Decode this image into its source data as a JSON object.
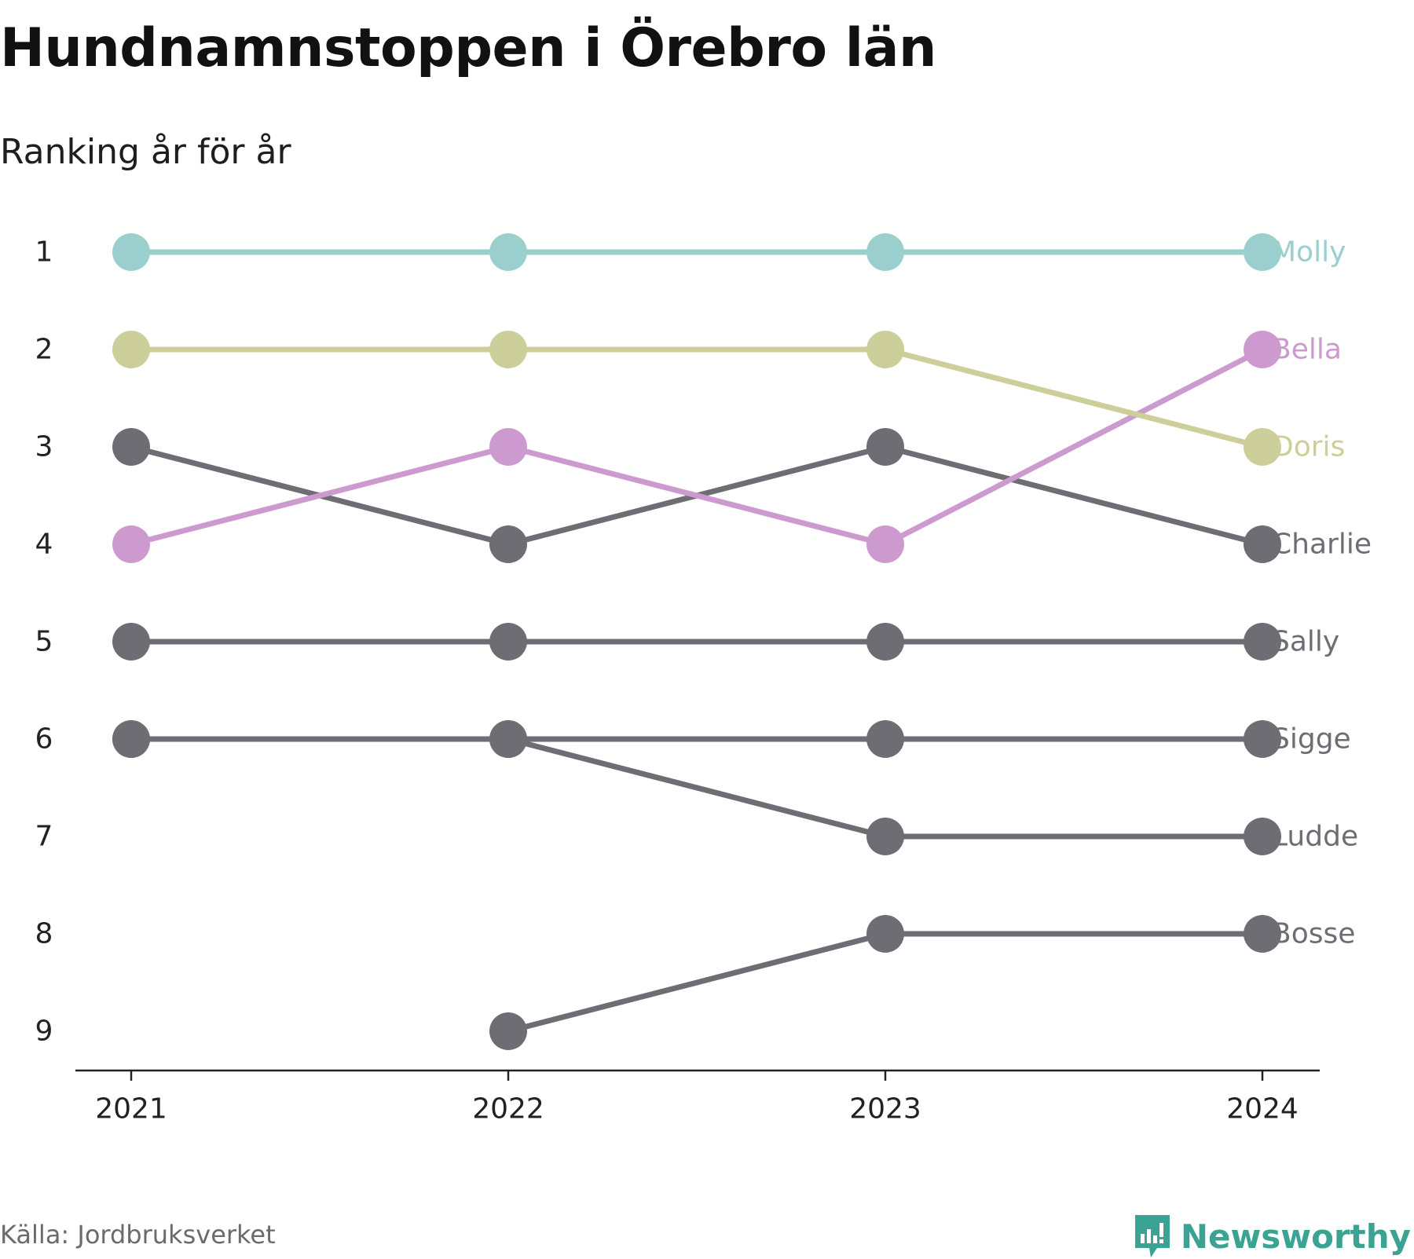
{
  "title": "Hundnamnstoppen i Örebro län",
  "subtitle": "Ranking år för år",
  "source": "Källa: Jordbruksverket",
  "brand": {
    "name": "Newsworthy",
    "icon": "newsworthy-logo-icon",
    "color": "#3aa394"
  },
  "chart_data": {
    "type": "line",
    "x": [
      "2021",
      "2022",
      "2023",
      "2024"
    ],
    "y_ticks": [
      1,
      2,
      3,
      4,
      5,
      6,
      7,
      8,
      9
    ],
    "ylim": [
      1,
      9
    ],
    "y_reversed": true,
    "legend": "end-labels",
    "series": [
      {
        "name": "Molly",
        "color": "#9bcfce",
        "values": [
          1,
          1,
          1,
          1
        ]
      },
      {
        "name": "Bella",
        "color": "#cc9acf",
        "values": [
          4,
          3,
          4,
          2
        ]
      },
      {
        "name": "Doris",
        "color": "#cdcf9a",
        "values": [
          2,
          2,
          2,
          3
        ]
      },
      {
        "name": "Charlie",
        "color": "#6e6d73",
        "values": [
          3,
          4,
          3,
          4
        ]
      },
      {
        "name": "Sally",
        "color": "#6e6d73",
        "values": [
          5,
          5,
          5,
          5
        ]
      },
      {
        "name": "Sigge",
        "color": "#6e6d73",
        "values": [
          6,
          6,
          6,
          6
        ]
      },
      {
        "name": "Ludde",
        "color": "#6e6d73",
        "values": [
          6,
          6,
          7,
          7
        ]
      },
      {
        "name": "Bosse",
        "color": "#6e6d73",
        "values": [
          null,
          9,
          8,
          8
        ]
      }
    ]
  }
}
